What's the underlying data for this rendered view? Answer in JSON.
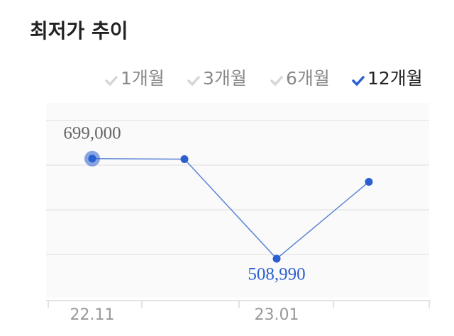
{
  "title": "최저가 추이",
  "periods": {
    "options": [
      "1개월",
      "3개월",
      "6개월",
      "12개월"
    ],
    "selected": 3
  },
  "chart_data": {
    "type": "line",
    "categories": [
      "22.11",
      null,
      "23.01",
      null
    ],
    "series": [
      {
        "name": "최저가",
        "color": "#5b84d6",
        "point_color": "#2a5fd0",
        "values": [
          699000,
          698000,
          508990,
          655000
        ],
        "value_labels": [
          "699,000",
          null,
          "508,990",
          null
        ]
      }
    ],
    "ylim": [
      435000,
      805000
    ]
  }
}
